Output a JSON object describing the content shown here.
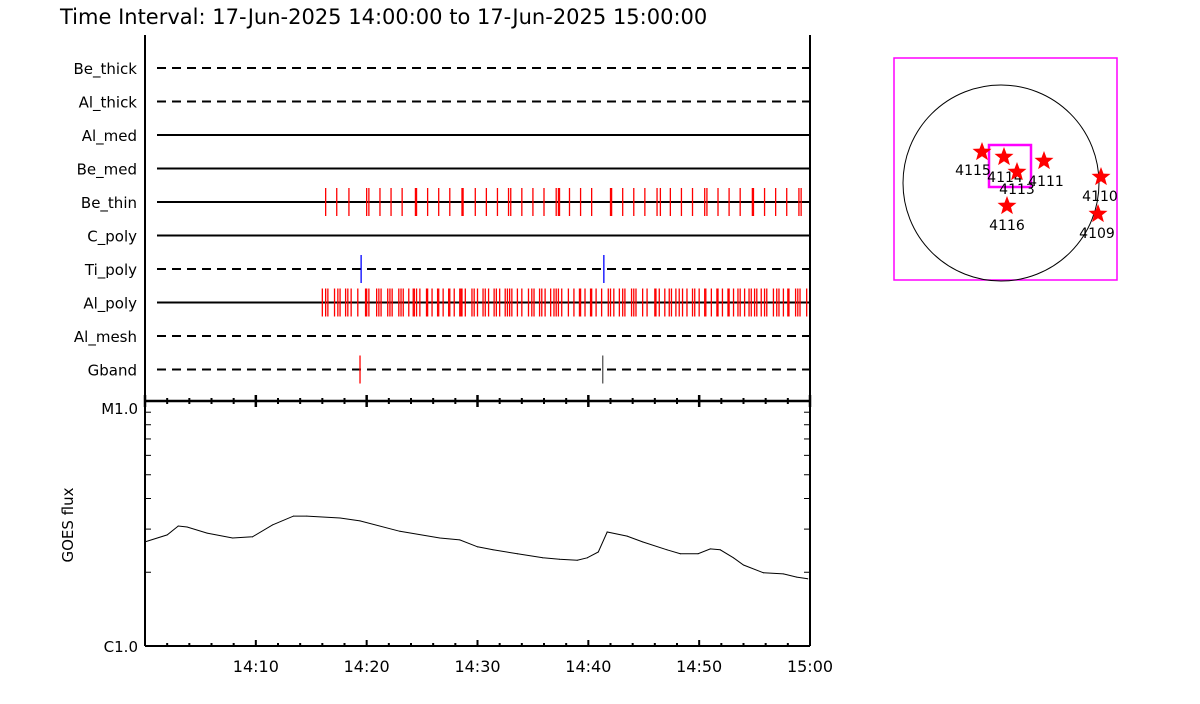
{
  "title": "Time Interval: 17-Jun-2025 14:00:00 to 17-Jun-2025 15:00:00",
  "colors": {
    "exposure": "#ff0000",
    "marker": "#0000ff",
    "gray": "#555555",
    "fov": "#ff00ff",
    "star": "#ff0000"
  },
  "chart_data": [
    {
      "type": "timeline",
      "xlim": [
        "14:00:00",
        "15:00:00"
      ],
      "rows": [
        {
          "name": "Be_thick",
          "style": "dashed",
          "ticks": []
        },
        {
          "name": "Al_thick",
          "style": "dashed",
          "ticks": []
        },
        {
          "name": "Al_med",
          "style": "solid",
          "ticks": []
        },
        {
          "name": "Be_med",
          "style": "solid",
          "ticks": []
        },
        {
          "name": "Be_thin",
          "style": "solid",
          "color": "#ff0000",
          "ticks": [
            "14:16:18",
            "14:17:18",
            "14:18:24",
            "14:20:00",
            "14:20:12",
            "14:21:12",
            "14:22:12",
            "14:23:12",
            "14:24:24",
            "14:24:30",
            "14:25:30",
            "14:26:30",
            "14:27:30",
            "14:28:36",
            "14:28:42",
            "14:29:48",
            "14:30:48",
            "14:31:48",
            "14:32:48",
            "14:33:00",
            "14:34:00",
            "14:35:00",
            "14:36:00",
            "14:37:06",
            "14:37:18",
            "14:37:24",
            "14:38:18",
            "14:39:18",
            "14:40:18",
            "14:42:00",
            "14:42:06",
            "14:43:06",
            "14:44:06",
            "14:45:06",
            "14:46:12",
            "14:46:30",
            "14:47:24",
            "14:48:24",
            "14:49:24",
            "14:50:30",
            "14:50:42",
            "14:51:42",
            "14:52:42",
            "14:53:42",
            "14:54:48",
            "14:54:54",
            "14:55:54",
            "14:56:54",
            "14:57:54",
            "14:59:00",
            "14:59:12"
          ]
        },
        {
          "name": "C_poly",
          "style": "solid",
          "ticks": []
        },
        {
          "name": "Ti_poly",
          "style": "dashed",
          "color": "#0000ff",
          "ticks": [
            "14:19:30",
            "14:41:24"
          ]
        },
        {
          "name": "Al_poly",
          "style": "solid",
          "color": "#ff0000",
          "ticks": [
            "14:16:00",
            "14:16:18",
            "14:16:30",
            "14:17:06",
            "14:17:24",
            "14:17:36",
            "14:18:06",
            "14:18:18",
            "14:18:36",
            "14:19:12",
            "14:19:54",
            "14:20:00",
            "14:20:12",
            "14:20:54",
            "14:21:06",
            "14:21:18",
            "14:21:54",
            "14:22:06",
            "14:22:18",
            "14:22:54",
            "14:23:06",
            "14:23:18",
            "14:23:48",
            "14:24:12",
            "14:24:18",
            "14:24:30",
            "14:24:48",
            "14:25:24",
            "14:25:30",
            "14:25:54",
            "14:26:24",
            "14:26:30",
            "14:26:54",
            "14:27:24",
            "14:27:30",
            "14:27:54",
            "14:28:24",
            "14:28:30",
            "14:28:36",
            "14:28:54",
            "14:29:30",
            "14:29:42",
            "14:30:00",
            "14:30:30",
            "14:30:42",
            "14:31:00",
            "14:31:30",
            "14:31:42",
            "14:32:00",
            "14:32:30",
            "14:32:42",
            "14:32:54",
            "14:33:06",
            "14:33:36",
            "14:34:00",
            "14:34:36",
            "14:34:54",
            "14:35:06",
            "14:35:36",
            "14:35:48",
            "14:36:06",
            "14:36:36",
            "14:36:54",
            "14:37:06",
            "14:37:18",
            "14:37:36",
            "14:38:12",
            "14:38:42",
            "14:39:12",
            "14:39:18",
            "14:39:42",
            "14:40:12",
            "14:40:18",
            "14:40:42",
            "14:41:12",
            "14:41:48",
            "14:42:00",
            "14:42:18",
            "14:42:48",
            "14:43:06",
            "14:43:18",
            "14:43:54",
            "14:44:06",
            "14:44:18",
            "14:44:54",
            "14:45:18",
            "14:46:00",
            "14:46:06",
            "14:46:24",
            "14:46:54",
            "14:47:18",
            "14:47:30",
            "14:47:54",
            "14:48:12",
            "14:48:30",
            "14:48:54",
            "14:49:24",
            "14:49:36",
            "14:50:00",
            "14:50:30",
            "14:50:36",
            "14:51:06",
            "14:51:36",
            "14:51:42",
            "14:52:06",
            "14:52:36",
            "14:52:42",
            "14:53:06",
            "14:53:30",
            "14:53:42",
            "14:54:06",
            "14:54:30",
            "14:54:42",
            "14:55:00",
            "14:55:12",
            "14:55:36",
            "14:55:54",
            "14:56:06",
            "14:56:42",
            "14:57:00",
            "14:57:12",
            "14:57:36",
            "14:58:00",
            "14:58:06",
            "14:58:42",
            "14:58:54",
            "14:59:06",
            "14:59:42"
          ]
        },
        {
          "name": "Al_mesh",
          "style": "dashed",
          "ticks": []
        },
        {
          "name": "Gband",
          "style": "dashed",
          "ticks": [
            {
              "t": "14:19:24",
              "color": "#ff0000"
            },
            {
              "t": "14:41:18",
              "color": "#555555"
            }
          ]
        }
      ]
    },
    {
      "type": "line",
      "ylabel": "GOES flux",
      "yscale": "log",
      "ylim": [
        1e-06,
        1e-05
      ],
      "ytick_labels": [
        "C1.0",
        "M1.0"
      ],
      "xlim": [
        "14:00:00",
        "15:00:00"
      ],
      "xtick_labels": [
        "14:10",
        "14:20",
        "14:30",
        "14:40",
        "14:50",
        "15:00"
      ],
      "x": [
        "14:00:00",
        "14:02:00",
        "14:03:00",
        "14:03:48",
        "14:05:36",
        "14:07:54",
        "14:09:42",
        "14:11:30",
        "14:13:24",
        "14:14:36",
        "14:17:36",
        "14:19:24",
        "14:23:00",
        "14:26:36",
        "14:28:24",
        "14:30:00",
        "14:31:24",
        "14:33:36",
        "14:35:54",
        "14:37:24",
        "14:39:00",
        "14:39:54",
        "14:40:54",
        "14:41:42",
        "14:43:30",
        "14:44:54",
        "14:47:06",
        "14:48:18",
        "14:49:54",
        "14:51:00",
        "14:51:54",
        "14:53:06",
        "14:54:00",
        "14:55:48",
        "14:57:36",
        "14:58:48",
        "14:59:48"
      ],
      "y": [
        2.66e-06,
        2.84e-06,
        3.09e-06,
        3.06e-06,
        2.89e-06,
        2.76e-06,
        2.79e-06,
        3.12e-06,
        3.39e-06,
        3.39e-06,
        3.33e-06,
        3.24e-06,
        2.94e-06,
        2.76e-06,
        2.71e-06,
        2.54e-06,
        2.47e-06,
        2.38e-06,
        2.29e-06,
        2.26e-06,
        2.24e-06,
        2.29e-06,
        2.42e-06,
        2.92e-06,
        2.81e-06,
        2.66e-06,
        2.47e-06,
        2.38e-06,
        2.38e-06,
        2.49e-06,
        2.47e-06,
        2.29e-06,
        2.14e-06,
        1.99e-06,
        1.97e-06,
        1.91e-06,
        1.88e-06
      ]
    }
  ],
  "sun_map": {
    "regions": [
      {
        "label": "4115"
      },
      {
        "label": "4114"
      },
      {
        "label": "4113"
      },
      {
        "label": "4111"
      },
      {
        "label": "4110"
      },
      {
        "label": "4109"
      },
      {
        "label": "4116"
      }
    ]
  }
}
